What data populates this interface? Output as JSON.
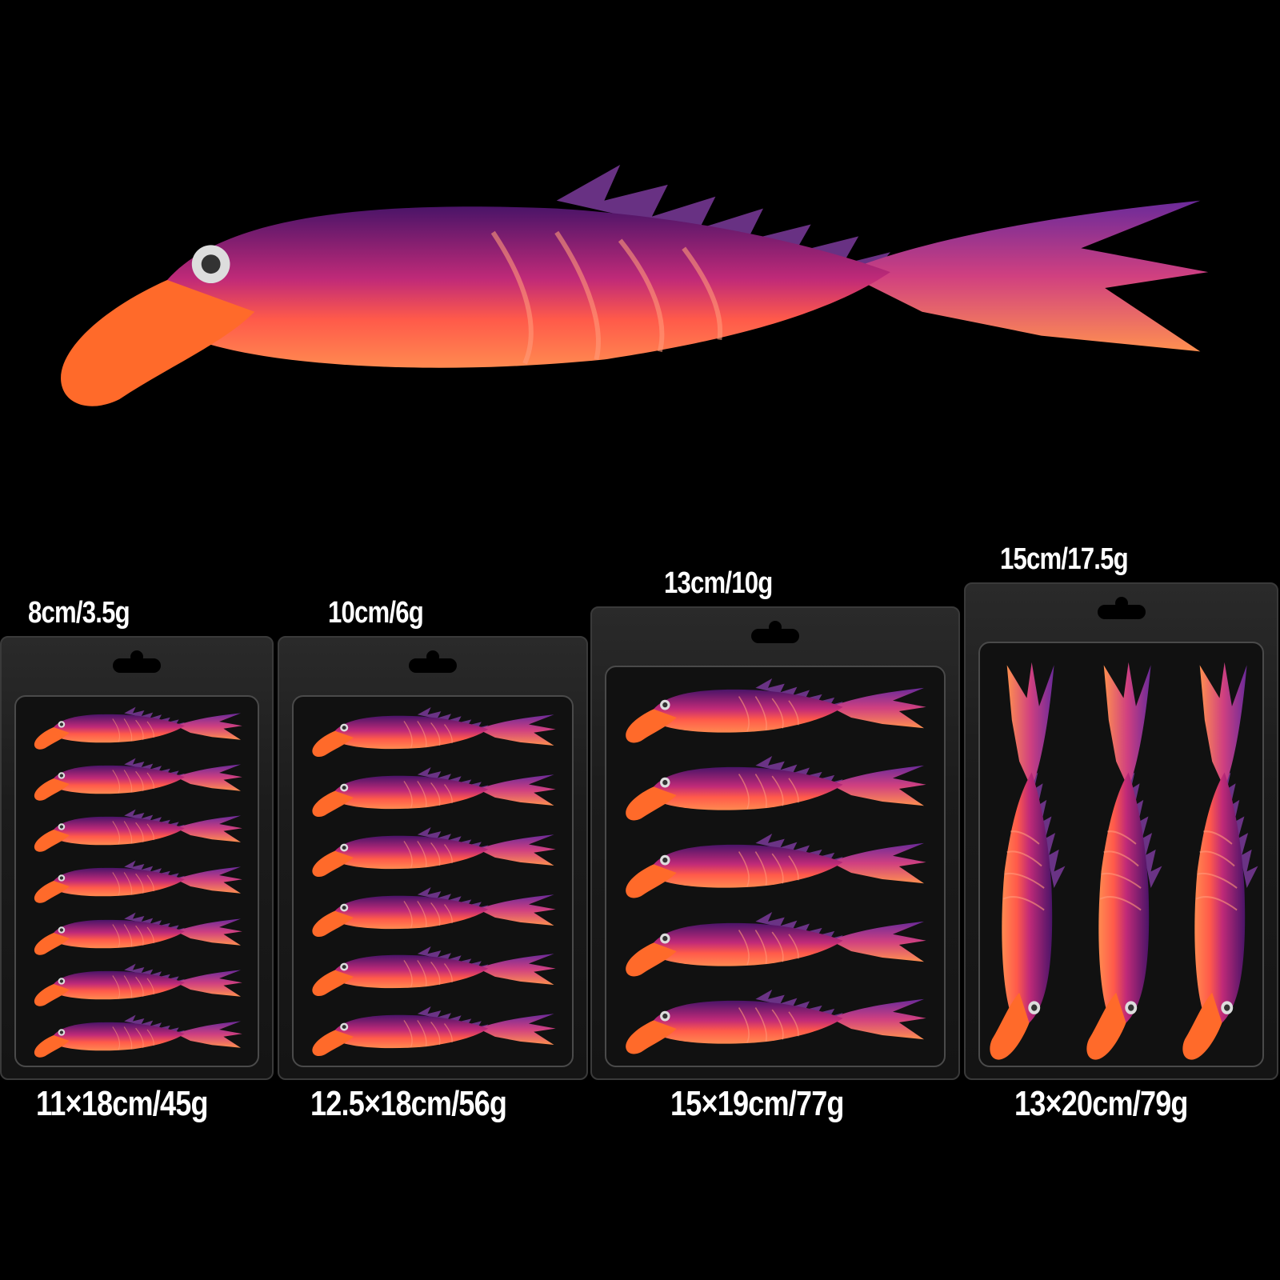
{
  "colors": {
    "background": "#000000",
    "head": "#ff6a2a",
    "body_top": "#5a1a7a",
    "body_mid": "#d8386a",
    "tail": "#ff8a40"
  },
  "packages": [
    {
      "lure_label": "8cm/3.5g",
      "package_label": "11×18cm/45g",
      "lure_count": 7,
      "orientation": "horizontal"
    },
    {
      "lure_label": "10cm/6g",
      "package_label": "12.5×18cm/56g",
      "lure_count": 6,
      "orientation": "horizontal"
    },
    {
      "lure_label": "13cm/10g",
      "package_label": "15×19cm/77g",
      "lure_count": 5,
      "orientation": "horizontal"
    },
    {
      "lure_label": "15cm/17.5g",
      "package_label": "13×20cm/79g",
      "lure_count": 3,
      "orientation": "vertical"
    }
  ]
}
